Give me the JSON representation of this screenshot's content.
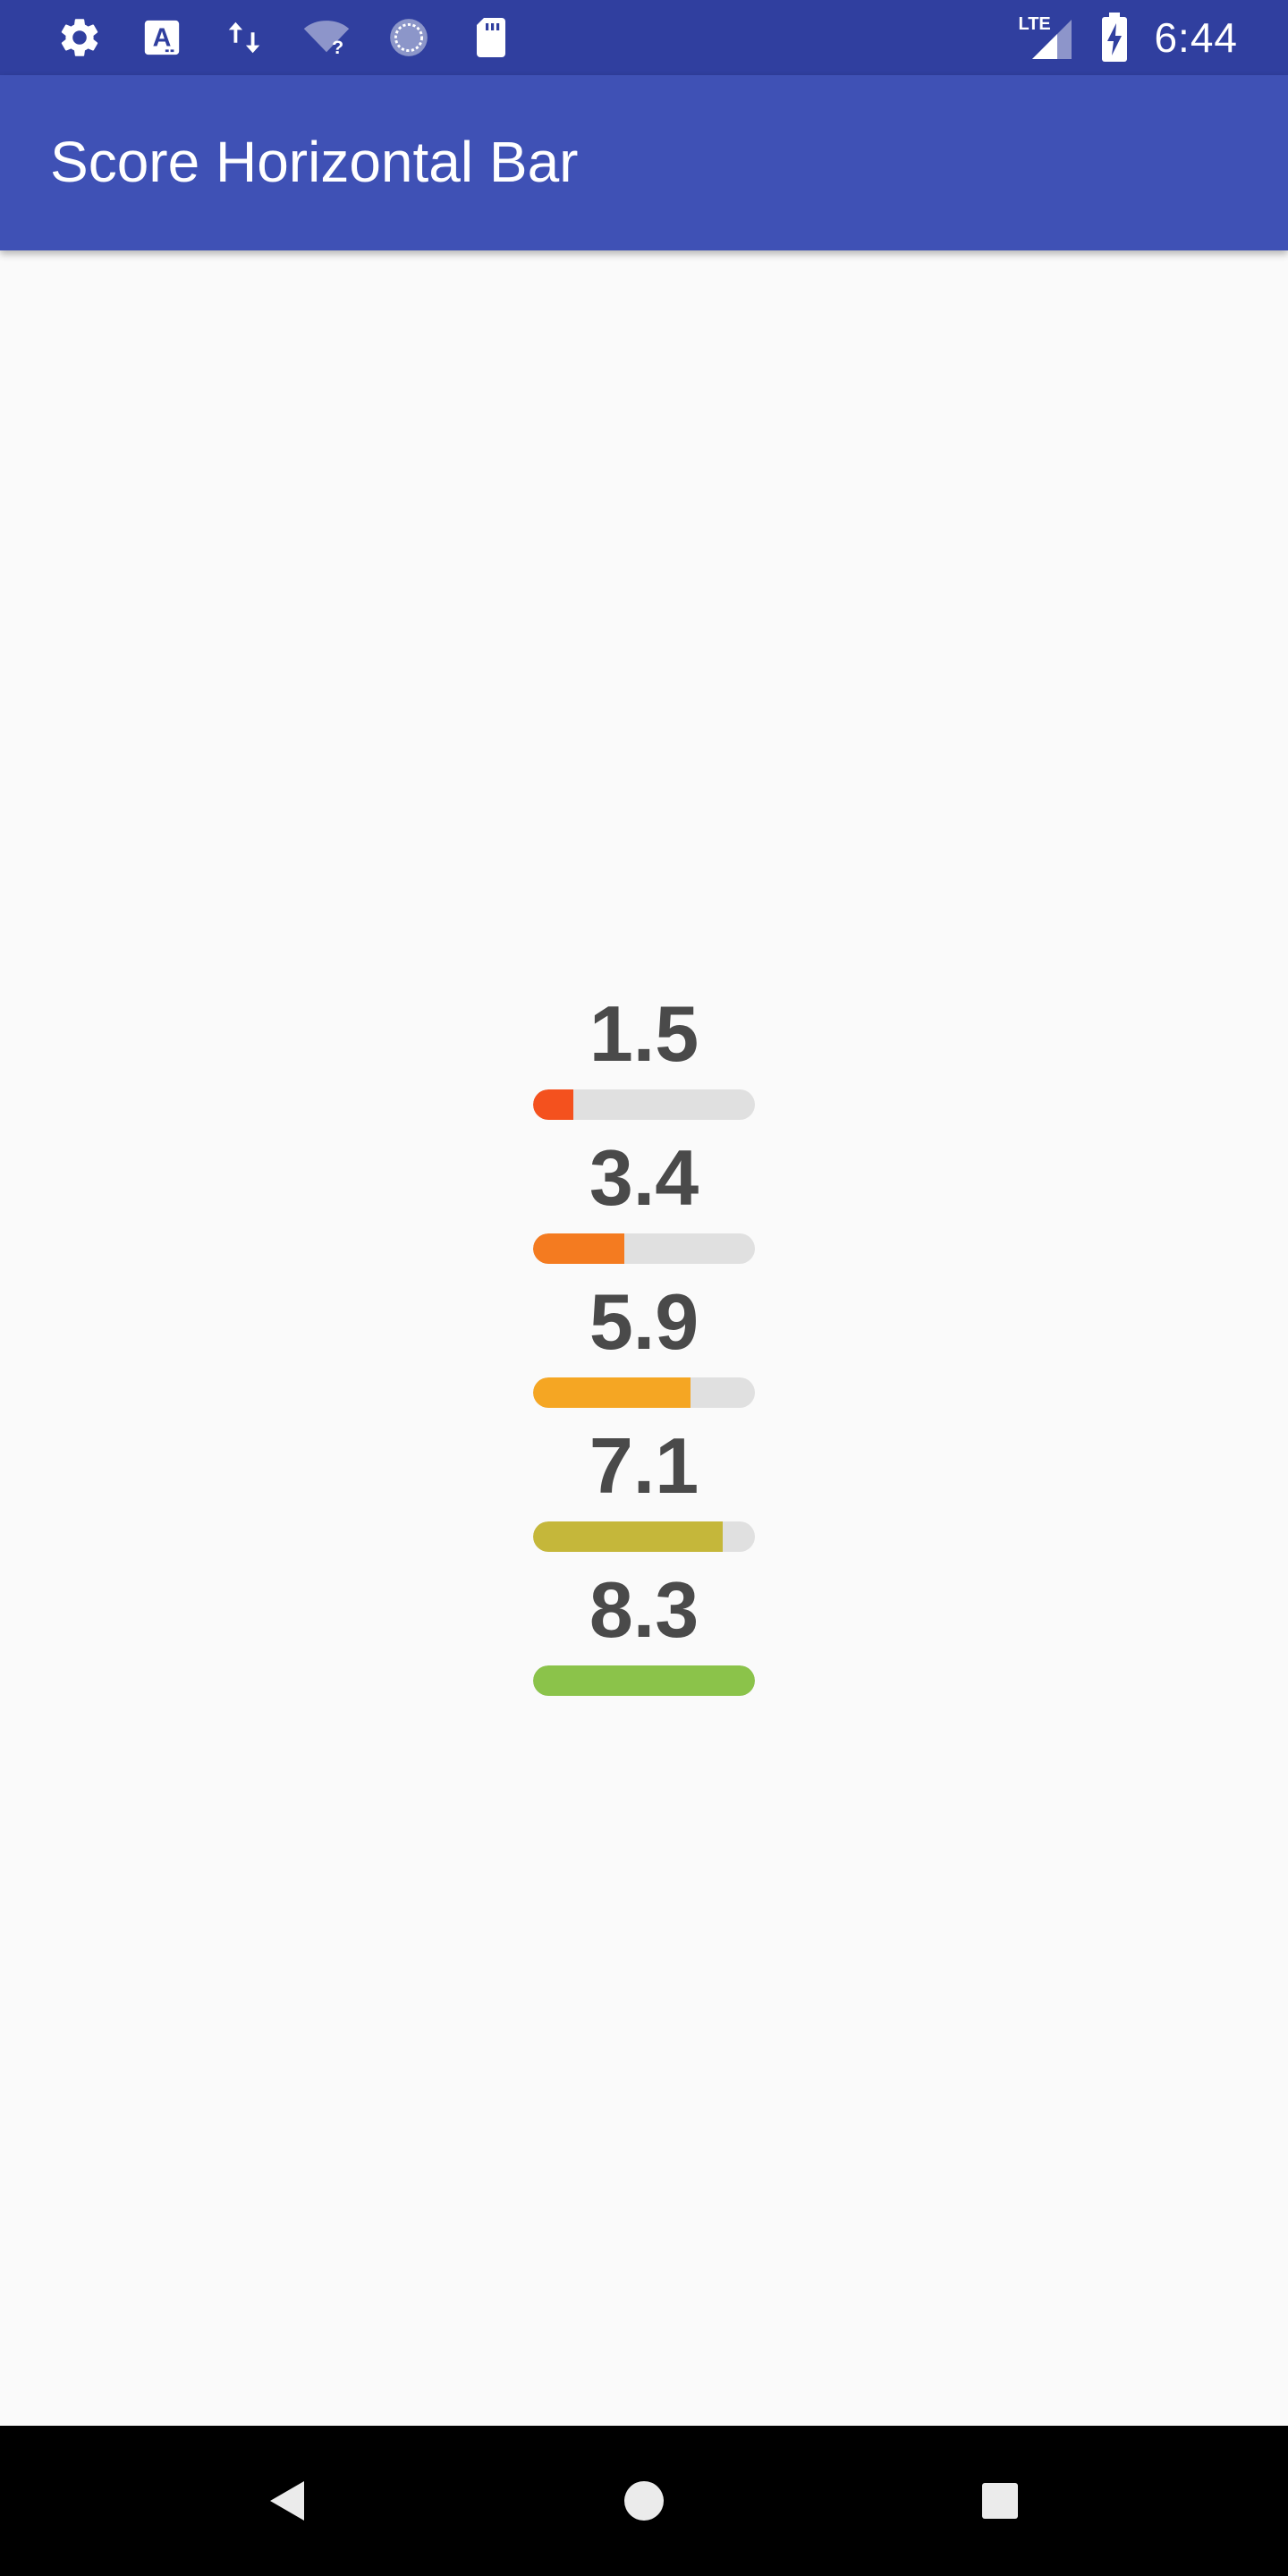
{
  "status_bar": {
    "time": "6:44",
    "network_label": "LTE",
    "icons_left": [
      "gear-icon",
      "font-a-icon",
      "data-transfer-icon",
      "wifi-question-icon",
      "sync-circle-icon",
      "sd-card-icon"
    ],
    "icons_right": [
      "lte-signal-icon",
      "battery-charging-icon"
    ]
  },
  "app_bar": {
    "title": "Score Horizontal Bar"
  },
  "scores": {
    "max": 8.3,
    "items": [
      {
        "label": "1.5",
        "value": 1.5,
        "color": "#f4511e"
      },
      {
        "label": "3.4",
        "value": 3.4,
        "color": "#f47b20"
      },
      {
        "label": "5.9",
        "value": 5.9,
        "color": "#f5a623"
      },
      {
        "label": "7.1",
        "value": 7.1,
        "color": "#c5b73a"
      },
      {
        "label": "8.3",
        "value": 8.3,
        "color": "#8bc34a"
      }
    ],
    "track_color": "#e0e0e0"
  },
  "nav_bar": {
    "buttons": [
      "back-icon",
      "home-icon",
      "recents-icon"
    ]
  },
  "colors": {
    "status_bar": "#303f9f",
    "app_bar": "#3f51b5",
    "background": "#fafafa",
    "score_text": "#4a4a4a"
  }
}
